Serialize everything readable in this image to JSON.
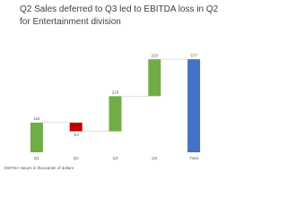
{
  "chart_data": {
    "type": "waterfall",
    "title": "Q2 Sales deferred to Q3 led to EBITDA loss in Q2 for Entertainment division",
    "categories": [
      "Q1",
      "Q2",
      "Q3",
      "Q4",
      "Total"
    ],
    "values": [
      184,
      -54,
      218,
      229,
      577
    ],
    "is_total": [
      false,
      false,
      false,
      false,
      true
    ],
    "colors": [
      "#70ad47",
      "#c00000",
      "#70ad47",
      "#70ad47",
      "#4472c4"
    ],
    "ylim": [
      0,
      600
    ],
    "footnote": "EBITDA Values in thousands of dollars"
  }
}
